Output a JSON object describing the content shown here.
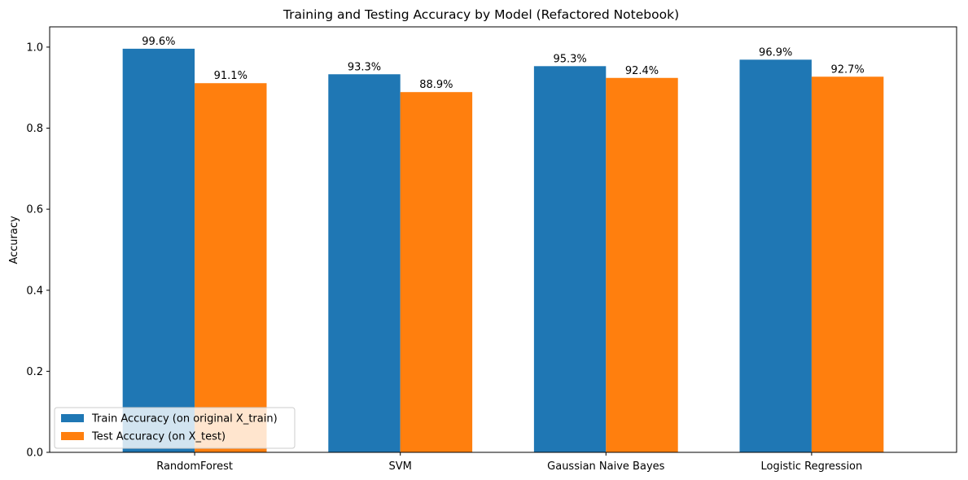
{
  "chart_data": {
    "type": "bar",
    "title": "Training and Testing Accuracy by Model (Refactored Notebook)",
    "xlabel": "",
    "ylabel": "Accuracy",
    "ylim": [
      0,
      1.05
    ],
    "yticks": [
      0.0,
      0.2,
      0.4,
      0.6,
      0.8,
      1.0
    ],
    "ytick_labels": [
      "0.0",
      "0.2",
      "0.4",
      "0.6",
      "0.8",
      "1.0"
    ],
    "categories": [
      "RandomForest",
      "SVM",
      "Gaussian Naive Bayes",
      "Logistic Regression"
    ],
    "series": [
      {
        "name": "Train Accuracy (on original X_train)",
        "color": "#1f77b4",
        "values": [
          0.996,
          0.933,
          0.953,
          0.969
        ],
        "labels": [
          "99.6%",
          "93.3%",
          "95.3%",
          "96.9%"
        ]
      },
      {
        "name": "Test Accuracy (on X_test)",
        "color": "#ff7f0e",
        "values": [
          0.911,
          0.889,
          0.924,
          0.927
        ],
        "labels": [
          "91.1%",
          "88.9%",
          "92.4%",
          "92.7%"
        ]
      }
    ],
    "legend_position": "lower-left",
    "grid": false
  }
}
